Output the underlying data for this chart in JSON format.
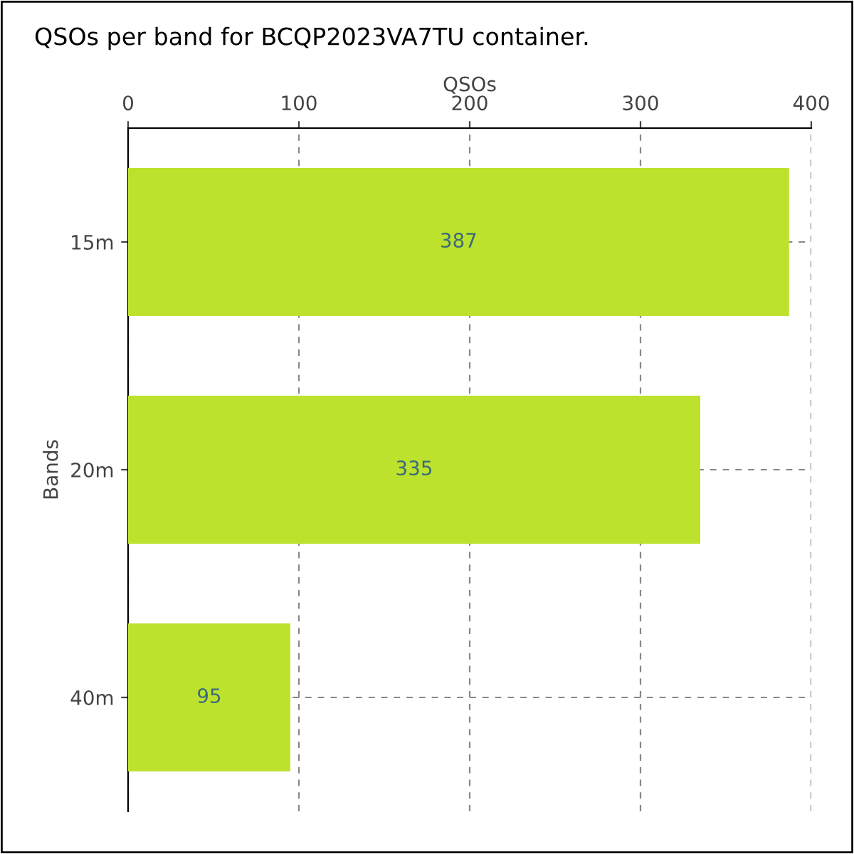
{
  "chart_data": {
    "type": "bar",
    "orientation": "horizontal",
    "title": "QSOs per band for BCQP2023VA7TU container.",
    "xlabel": "QSOs",
    "ylabel": "Bands",
    "categories": [
      "15m",
      "20m",
      "40m"
    ],
    "values": [
      387,
      335,
      95
    ],
    "color": "#bde22e",
    "xlim": [
      0,
      400
    ],
    "xticks": [
      0,
      100,
      200,
      300,
      400
    ],
    "grid": true,
    "data_labels": true
  }
}
